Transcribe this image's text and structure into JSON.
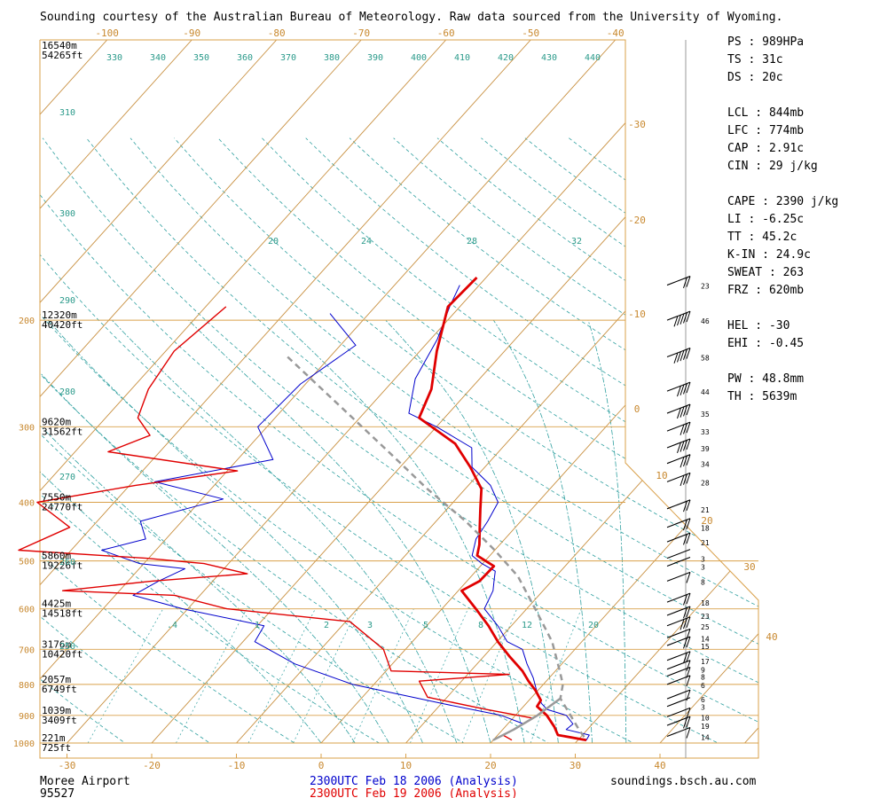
{
  "header": "Sounding courtesy of the Australian Bureau of Meteorology.  Raw data sourced from the University of Wyoming.",
  "footer": {
    "station_name": "Moree Airport",
    "station_id": "95527",
    "run1": "2300UTC Feb 18 2006 (Analysis)",
    "run2": "2300UTC Feb 19 2006 (Analysis)",
    "site": "soundings.bsch.au.com"
  },
  "colors": {
    "run1": "#0000cc",
    "run2": "#e00000",
    "isobar": "#d9a04a",
    "isotherm": "#c89040",
    "dry_adiabat": "#30a0a0",
    "moist_adiabat": "#30a0a0",
    "mixing_ratio": "#30a0a0",
    "parcel": "#999999",
    "text": "#000000",
    "teal_text": "#2a9a8a",
    "orange_text": "#c8882e"
  },
  "indices": [
    {
      "label": "PS : 989HPa"
    },
    {
      "label": "TS : 31c"
    },
    {
      "label": "DS : 20c"
    },
    {
      "label": ""
    },
    {
      "label": "LCL : 844mb"
    },
    {
      "label": "LFC : 774mb"
    },
    {
      "label": "CAP : 2.91c"
    },
    {
      "label": "CIN : 29 j/kg"
    },
    {
      "label": ""
    },
    {
      "label": "CAPE : 2390 j/kg"
    },
    {
      "label": "LI : -6.25c"
    },
    {
      "label": "TT : 45.2c"
    },
    {
      "label": "K-IN : 24.9c"
    },
    {
      "label": "SWEAT : 263"
    },
    {
      "label": "FRZ : 620mb"
    },
    {
      "label": ""
    },
    {
      "label": "HEL : -30"
    },
    {
      "label": "EHI : -0.45"
    },
    {
      "label": ""
    },
    {
      "label": "PW : 48.8mm"
    },
    {
      "label": "TH : 5639m"
    }
  ],
  "chart_data": {
    "type": "skew-t log-p",
    "x_axis_bottom": {
      "ticks": [
        -30,
        -20,
        -10,
        0,
        10,
        20,
        30,
        40
      ]
    },
    "x_axis_top": {
      "ticks": [
        -100,
        -90,
        -80,
        -70,
        -60,
        -50,
        -40
      ]
    },
    "pressure_ticks": [
      200,
      300,
      400,
      500,
      600,
      700,
      800,
      900,
      1000
    ],
    "height_labels": [
      {
        "p": 200,
        "m": "12320m",
        "ft": "40420ft"
      },
      {
        "p": 300,
        "m": "9620m",
        "ft": "31562ft"
      },
      {
        "p": 400,
        "m": "7550m",
        "ft": "24770ft"
      },
      {
        "p": 500,
        "m": "5860m",
        "ft": "19226ft"
      },
      {
        "p": 600,
        "m": "4425m",
        "ft": "14518ft"
      },
      {
        "p": 700,
        "m": "3176m",
        "ft": "10420ft"
      },
      {
        "p": 800,
        "m": "2057m",
        "ft": "6749ft"
      },
      {
        "p": 900,
        "m": "1039m",
        "ft": "3409ft"
      },
      {
        "p": 1000,
        "m": "221m",
        "ft": "725ft"
      }
    ],
    "top_height_label": {
      "m": "16540m",
      "ft": "54265ft"
    },
    "theta_top_labels": [
      "330",
      "340",
      "350",
      "360",
      "370",
      "380",
      "390",
      "400",
      "410",
      "420",
      "430",
      "440"
    ],
    "theta_left_labels": [
      "310",
      "300",
      "290",
      "280",
      "270",
      "260",
      "250"
    ],
    "moist_labels": [
      "20",
      "24",
      "28",
      "32"
    ],
    "mixing_labels": [
      ".4",
      "1",
      "2",
      "3",
      "5",
      "8",
      "12",
      "20"
    ],
    "inset_temp_labels": [
      "-30",
      "-20",
      "-10",
      "0"
    ],
    "wind_inset_labels": [
      "10",
      "20",
      "30",
      "40"
    ],
    "wind_speed_labels": [
      "23",
      "46",
      "58",
      "44",
      "35",
      "33",
      "39",
      "34",
      "28",
      "21",
      "18",
      "21",
      "3",
      "3",
      "8",
      "18",
      "23",
      "25",
      "14",
      "15",
      "17",
      "9",
      "8",
      "6",
      "6",
      "3",
      "10",
      "19",
      "14"
    ],
    "series": [
      {
        "name": "2300UTC Feb 18 2006 (Analysis)",
        "kind": "temperature",
        "points": [
          [
            175,
            -32.3
          ],
          [
            190,
            -31.2
          ],
          [
            215,
            -29.2
          ],
          [
            250,
            -27.6
          ],
          [
            285,
            -24.7
          ],
          [
            300,
            -20.0
          ],
          [
            325,
            -13.6
          ],
          [
            350,
            -11.5
          ],
          [
            375,
            -7.4
          ],
          [
            400,
            -4.7
          ],
          [
            430,
            -3.9
          ],
          [
            460,
            -3.4
          ],
          [
            490,
            -2.1
          ],
          [
            505,
            -0.1
          ],
          [
            520,
            2.3
          ],
          [
            540,
            3.2
          ],
          [
            560,
            4.1
          ],
          [
            600,
            5.0
          ],
          [
            640,
            8.4
          ],
          [
            680,
            11.2
          ],
          [
            700,
            13.8
          ],
          [
            740,
            15.9
          ],
          [
            780,
            18.1
          ],
          [
            820,
            19.9
          ],
          [
            860,
            21.8
          ],
          [
            880,
            23.1
          ],
          [
            900,
            26.0
          ],
          [
            930,
            27.7
          ],
          [
            950,
            27.5
          ],
          [
            970,
            30.8
          ],
          [
            989,
            31.0
          ]
        ]
      },
      {
        "name": "2300UTC Feb 18 2006 (Analysis)",
        "kind": "dewpoint",
        "points": [
          [
            195,
            -44.6
          ],
          [
            220,
            -38.2
          ],
          [
            255,
            -40.6
          ],
          [
            300,
            -41.1
          ],
          [
            340,
            -35.8
          ],
          [
            370,
            -47.4
          ],
          [
            395,
            -37.5
          ],
          [
            410,
            -40.8
          ],
          [
            430,
            -44.9
          ],
          [
            460,
            -42.4
          ],
          [
            480,
            -46.4
          ],
          [
            505,
            -40.5
          ],
          [
            515,
            -34.6
          ],
          [
            540,
            -36.4
          ],
          [
            570,
            -37.9
          ],
          [
            600,
            -30.6
          ],
          [
            640,
            -19.2
          ],
          [
            680,
            -18.6
          ],
          [
            740,
            -11.5
          ],
          [
            800,
            -2.5
          ],
          [
            860,
            10.0
          ],
          [
            900,
            18.3
          ],
          [
            930,
            21.9
          ],
          [
            950,
            21.3
          ],
          [
            970,
            20.6
          ],
          [
            989,
            20.0
          ]
        ]
      },
      {
        "name": "2300UTC Feb 19 2006 (Analysis)",
        "kind": "temperature",
        "points": [
          [
            170,
            -31.1
          ],
          [
            190,
            -31.4
          ],
          [
            225,
            -28.0
          ],
          [
            260,
            -24.6
          ],
          [
            290,
            -23.0
          ],
          [
            320,
            -16.0
          ],
          [
            350,
            -11.7
          ],
          [
            380,
            -8.1
          ],
          [
            410,
            -6.1
          ],
          [
            440,
            -4.2
          ],
          [
            470,
            -2.4
          ],
          [
            490,
            -1.5
          ],
          [
            510,
            1.6
          ],
          [
            540,
            1.5
          ],
          [
            560,
            0.4
          ],
          [
            600,
            4.0
          ],
          [
            640,
            7.3
          ],
          [
            680,
            10.1
          ],
          [
            720,
            13.1
          ],
          [
            760,
            16.1
          ],
          [
            790,
            17.9
          ],
          [
            820,
            19.8
          ],
          [
            850,
            21.4
          ],
          [
            870,
            21.6
          ],
          [
            900,
            23.7
          ],
          [
            940,
            25.8
          ],
          [
            970,
            27.1
          ],
          [
            989,
            31.0
          ]
        ]
      },
      {
        "name": "2300UTC Feb 19 2006 (Analysis)",
        "kind": "dewpoint",
        "points": [
          [
            190,
            -57.6
          ],
          [
            225,
            -59.0
          ],
          [
            260,
            -58.0
          ],
          [
            290,
            -56.2
          ],
          [
            310,
            -52.9
          ],
          [
            330,
            -56.1
          ],
          [
            355,
            -38.8
          ],
          [
            375,
            -49.3
          ],
          [
            400,
            -59.1
          ],
          [
            440,
            -52.6
          ],
          [
            480,
            -56.2
          ],
          [
            495,
            -40.3
          ],
          [
            505,
            -32.9
          ],
          [
            525,
            -26.7
          ],
          [
            540,
            -37.2
          ],
          [
            560,
            -46.7
          ],
          [
            570,
            -33.0
          ],
          [
            600,
            -25.4
          ],
          [
            630,
            -9.5
          ],
          [
            700,
            -2.6
          ],
          [
            760,
            0.6
          ],
          [
            770,
            14.9
          ],
          [
            790,
            5.0
          ],
          [
            840,
            7.7
          ],
          [
            880,
            15.9
          ],
          [
            910,
            22.4
          ],
          [
            940,
            21.6
          ],
          [
            970,
            20.6
          ],
          [
            989,
            22.2
          ]
        ]
      },
      {
        "name": "",
        "kind": "parcel",
        "points": [
          [
            230,
            -45
          ],
          [
            280,
            -33
          ],
          [
            330,
            -23
          ],
          [
            380,
            -14.5
          ],
          [
            430,
            -6.5
          ],
          [
            480,
            0
          ],
          [
            530,
            5.5
          ],
          [
            600,
            11
          ],
          [
            680,
            16.5
          ],
          [
            760,
            20.5
          ],
          [
            800,
            22.3
          ],
          [
            844,
            23.5
          ],
          [
            900,
            26.5
          ],
          [
            950,
            29.0
          ],
          [
            989,
            31.0
          ]
        ]
      },
      {
        "name": "",
        "kind": "dewpoint-parcel",
        "points": [
          [
            844,
            23.5
          ],
          [
            900,
            22.6
          ],
          [
            950,
            21.3
          ],
          [
            989,
            20.0
          ]
        ]
      }
    ],
    "wind_barbs": [
      {
        "p": 175,
        "speed": 23
      },
      {
        "p": 200,
        "speed": 46
      },
      {
        "p": 230,
        "speed": 58
      },
      {
        "p": 262,
        "speed": 44
      },
      {
        "p": 285,
        "speed": 35
      },
      {
        "p": 305,
        "speed": 33
      },
      {
        "p": 325,
        "speed": 39
      },
      {
        "p": 345,
        "speed": 34
      },
      {
        "p": 370,
        "speed": 28
      },
      {
        "p": 410,
        "speed": 21
      },
      {
        "p": 440,
        "speed": 18
      },
      {
        "p": 465,
        "speed": 21
      },
      {
        "p": 495,
        "speed": 3
      },
      {
        "p": 510,
        "speed": 3
      },
      {
        "p": 540,
        "speed": 8
      },
      {
        "p": 585,
        "speed": 18
      },
      {
        "p": 615,
        "speed": 23
      },
      {
        "p": 640,
        "speed": 25
      },
      {
        "p": 670,
        "speed": 14
      },
      {
        "p": 690,
        "speed": 15
      },
      {
        "p": 730,
        "speed": 17
      },
      {
        "p": 755,
        "speed": 9
      },
      {
        "p": 775,
        "speed": 8
      },
      {
        "p": 800,
        "speed": 6
      },
      {
        "p": 845,
        "speed": 6
      },
      {
        "p": 870,
        "speed": 3
      },
      {
        "p": 905,
        "speed": 10
      },
      {
        "p": 935,
        "speed": 19
      },
      {
        "p": 975,
        "speed": 14
      }
    ]
  }
}
